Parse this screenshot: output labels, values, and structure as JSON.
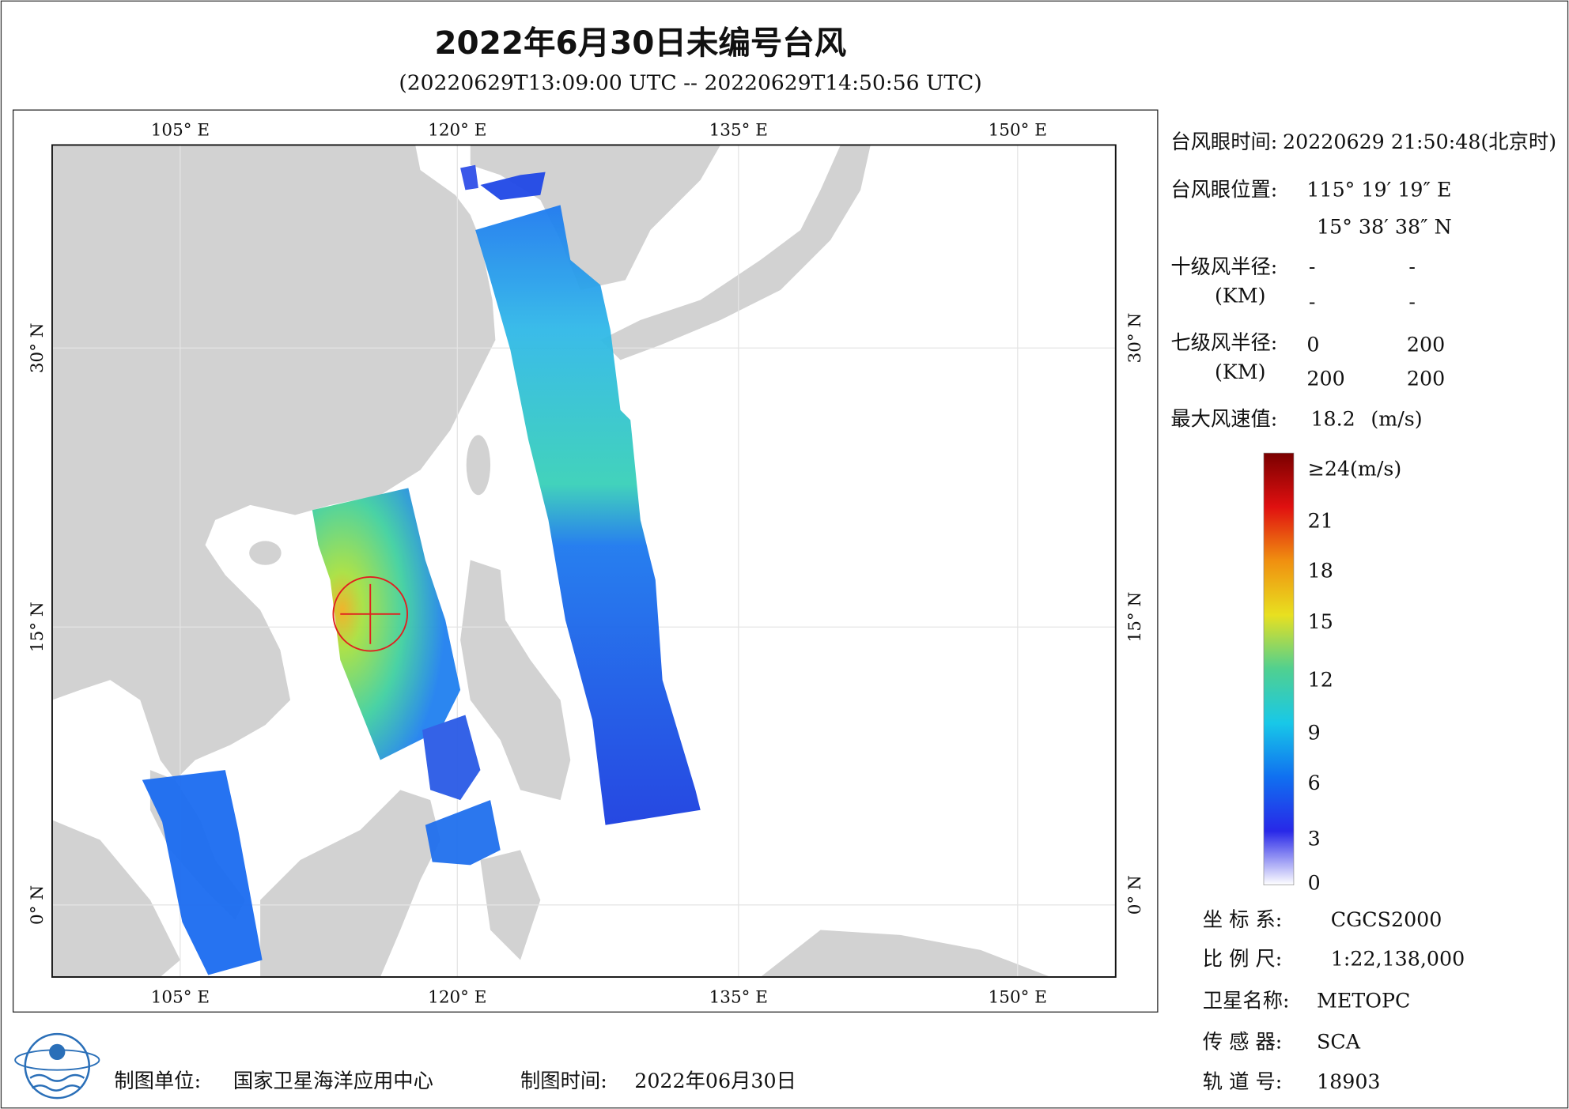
{
  "header": {
    "title": "2022年6月30日未编号台风",
    "subtitle": "(20220629T13:09:00 UTC -- 20220629T14:50:56 UTC)"
  },
  "map": {
    "lon_labels": [
      "105° E",
      "120° E",
      "135° E",
      "150° E"
    ],
    "lat_labels": [
      "30° N",
      "15° N",
      "0° N"
    ]
  },
  "typhoon_info": {
    "eye_time": {
      "label": "台风眼时间:",
      "value": "20220629 21:50:48(北京时)"
    },
    "eye_position": {
      "label": "台风眼位置:",
      "lon": "115° 19′ 19″ E",
      "lat": "15° 38′ 38″ N"
    },
    "grade10_radius": {
      "label": "十级风半径:",
      "unit": "(KM)",
      "values": [
        "-",
        "-",
        "-",
        "-"
      ]
    },
    "grade7_radius": {
      "label": "七级风半径:",
      "unit": "(KM)",
      "values": [
        "0",
        "200",
        "200",
        "200"
      ]
    },
    "max_wind": {
      "label": "最大风速值:",
      "value": "18.2",
      "unit": "(m/s)"
    }
  },
  "colorbar": {
    "labels": [
      "≥24(m/s)",
      "21",
      "18",
      "15",
      "12",
      "9",
      "6",
      "3",
      "0"
    ]
  },
  "product_info": [
    {
      "label": "坐 标 系:",
      "value": "CGCS2000"
    },
    {
      "label": "比 例 尺:",
      "value": "1:22,138,000"
    },
    {
      "label": "卫星名称:",
      "value": "METOPC"
    },
    {
      "label": "传 感 器:",
      "value": "SCA"
    },
    {
      "label": "轨 道 号:",
      "value": "18903"
    }
  ],
  "footer": {
    "unit_label": "制图单位:",
    "unit": "国家卫星海洋应用中心",
    "time_label": "制图时间:",
    "time": "2022年06月30日"
  }
}
